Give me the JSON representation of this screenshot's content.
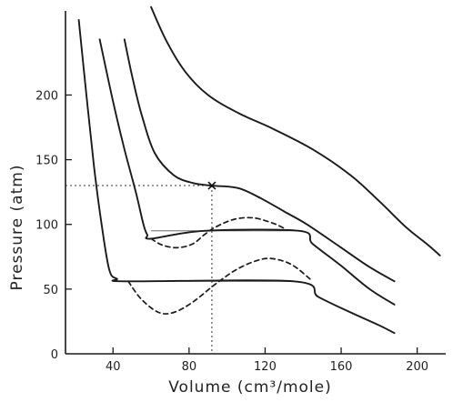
{
  "chart_data": {
    "type": "line",
    "title": "",
    "xlabel": "Volume (cm³/mole)",
    "ylabel": "Pressure (atm)",
    "xlim": [
      15,
      215
    ],
    "ylim": [
      0,
      265
    ],
    "x_ticks": [
      40,
      80,
      120,
      160,
      200
    ],
    "y_ticks": [
      0,
      50,
      100,
      150,
      200
    ],
    "x_tick_labels": [
      "40",
      "80",
      "120",
      "160",
      "200"
    ],
    "y_tick_labels": [
      "0",
      "50",
      "100",
      "150",
      "200"
    ],
    "grid": false,
    "legend": "none",
    "line_color": "#1a1a1a",
    "series": [
      {
        "solid": [
          [
            22,
            258
          ],
          [
            26,
            200
          ],
          [
            30,
            145
          ],
          [
            34,
            100
          ],
          [
            38,
            65
          ],
          [
            42,
            58
          ],
          [
            48,
            56
          ],
          [
            135,
            56
          ],
          [
            148,
            44
          ],
          [
            165,
            32
          ],
          [
            180,
            22
          ],
          [
            188,
            16
          ]
        ],
        "dashed": [
          [
            48,
            56
          ],
          [
            55,
            42
          ],
          [
            64,
            32
          ],
          [
            72,
            32
          ],
          [
            82,
            40
          ],
          [
            94,
            54
          ],
          [
            106,
            66
          ],
          [
            118,
            73
          ],
          [
            126,
            73
          ],
          [
            135,
            68
          ],
          [
            145,
            56
          ]
        ]
      },
      {
        "solid": [
          [
            33,
            243
          ],
          [
            40,
            195
          ],
          [
            46,
            158
          ],
          [
            52,
            125
          ],
          [
            56,
            100
          ],
          [
            58,
            92
          ],
          [
            60,
            89
          ],
          [
            88,
            95
          ],
          [
            138,
            95
          ],
          [
            145,
            85
          ],
          [
            160,
            68
          ],
          [
            175,
            50
          ],
          [
            188,
            38
          ]
        ],
        "dashed": [
          [
            60,
            89
          ],
          [
            66,
            84
          ],
          [
            74,
            82
          ],
          [
            82,
            85
          ],
          [
            88,
            92
          ],
          [
            94,
            98
          ],
          [
            104,
            104
          ],
          [
            114,
            105
          ],
          [
            124,
            101
          ],
          [
            130,
            97
          ]
        ]
      },
      {
        "solid": [
          [
            46,
            243
          ],
          [
            50,
            215
          ],
          [
            55,
            185
          ],
          [
            62,
            155
          ],
          [
            72,
            138
          ],
          [
            82,
            132
          ],
          [
            92,
            130
          ],
          [
            106,
            128
          ],
          [
            118,
            120
          ],
          [
            130,
            110
          ],
          [
            142,
            100
          ],
          [
            160,
            82
          ],
          [
            175,
            67
          ],
          [
            188,
            56
          ]
        ],
        "dashed": []
      },
      {
        "solid": [
          [
            60,
            268
          ],
          [
            68,
            242
          ],
          [
            78,
            218
          ],
          [
            90,
            200
          ],
          [
            106,
            186
          ],
          [
            124,
            174
          ],
          [
            145,
            158
          ],
          [
            165,
            138
          ],
          [
            180,
            118
          ],
          [
            194,
            98
          ],
          [
            205,
            85
          ],
          [
            212,
            76
          ]
        ],
        "dashed": []
      }
    ],
    "annotations": [
      {
        "kind": "critical-point",
        "x": 92,
        "y": 130
      },
      {
        "kind": "dotted-guide",
        "from": [
          15,
          130
        ],
        "to": [
          92,
          130
        ]
      },
      {
        "kind": "dotted-guide",
        "from": [
          92,
          130
        ],
        "to": [
          92,
          0
        ]
      }
    ]
  }
}
